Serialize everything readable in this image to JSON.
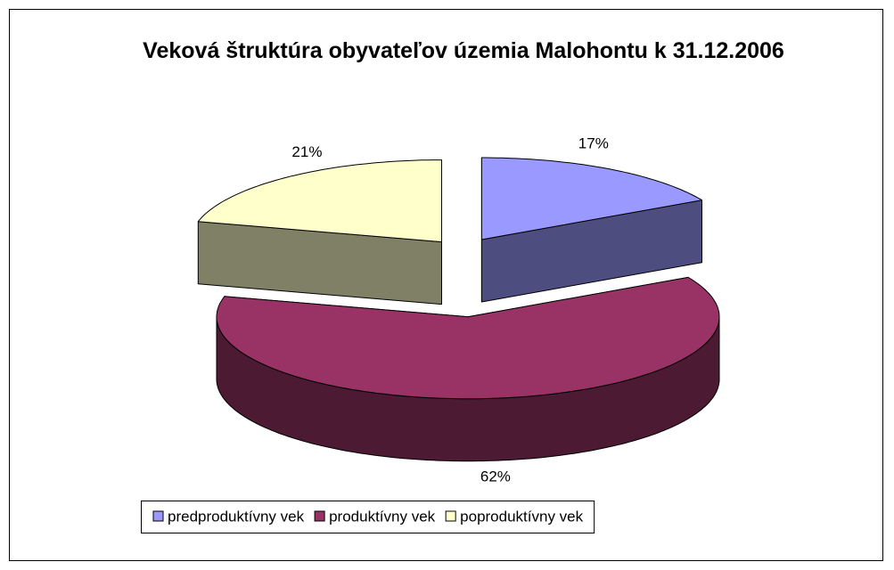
{
  "chart_data": {
    "type": "pie3d",
    "title": "Veková štruktúra obyvateľov územia Malohontu k 31.12.2006",
    "categories": [
      "predproduktívny vek",
      "produktívny vek",
      "poproduktívny vek"
    ],
    "values": [
      17,
      62,
      21
    ],
    "value_labels": [
      "17%",
      "62%",
      "21%"
    ],
    "colors": [
      "#9999ff",
      "#993366",
      "#ffffcc"
    ],
    "legend": "bottom"
  }
}
